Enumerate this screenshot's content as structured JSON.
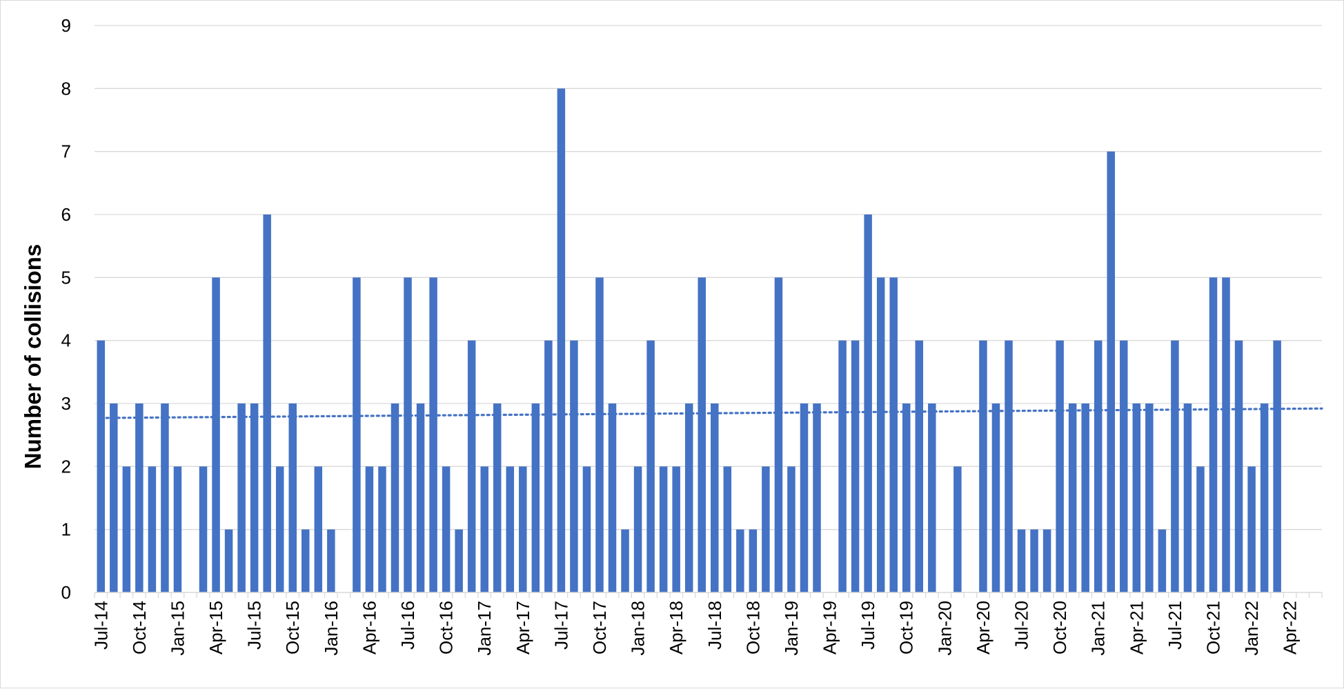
{
  "chart_data": {
    "type": "bar",
    "title": "",
    "xlabel": "",
    "ylabel": "Number of collisions",
    "ylim": [
      0,
      9
    ],
    "yticks": [
      0,
      1,
      2,
      3,
      4,
      5,
      6,
      7,
      8,
      9
    ],
    "grid": true,
    "legend": "none",
    "bar_color": "#4472C4",
    "trendline": {
      "type": "linear",
      "style": "dotted",
      "color": "#4472C4",
      "start_value": 2.77,
      "end_value": 2.92
    },
    "categories": [
      "Jul-14",
      "Aug-14",
      "Sep-14",
      "Oct-14",
      "Nov-14",
      "Dec-14",
      "Jan-15",
      "Feb-15",
      "Mar-15",
      "Apr-15",
      "May-15",
      "Jun-15",
      "Jul-15",
      "Aug-15",
      "Sep-15",
      "Oct-15",
      "Nov-15",
      "Dec-15",
      "Jan-16",
      "Feb-16",
      "Mar-16",
      "Apr-16",
      "May-16",
      "Jun-16",
      "Jul-16",
      "Aug-16",
      "Sep-16",
      "Oct-16",
      "Nov-16",
      "Dec-16",
      "Jan-17",
      "Feb-17",
      "Mar-17",
      "Apr-17",
      "May-17",
      "Jun-17",
      "Jul-17",
      "Aug-17",
      "Sep-17",
      "Oct-17",
      "Nov-17",
      "Dec-17",
      "Jan-18",
      "Feb-18",
      "Mar-18",
      "Apr-18",
      "May-18",
      "Jun-18",
      "Jul-18",
      "Aug-18",
      "Sep-18",
      "Oct-18",
      "Nov-18",
      "Dec-18",
      "Jan-19",
      "Feb-19",
      "Mar-19",
      "Apr-19",
      "May-19",
      "Jun-19",
      "Jul-19",
      "Aug-19",
      "Sep-19",
      "Oct-19",
      "Nov-19",
      "Dec-19",
      "Jan-20",
      "Feb-20",
      "Mar-20",
      "Apr-20",
      "May-20",
      "Jun-20",
      "Jul-20",
      "Aug-20",
      "Sep-20",
      "Oct-20",
      "Nov-20",
      "Dec-20",
      "Jan-21",
      "Feb-21",
      "Mar-21",
      "Apr-21",
      "May-21",
      "Jun-21",
      "Jul-21",
      "Aug-21",
      "Sep-21",
      "Oct-21",
      "Nov-21",
      "Dec-21",
      "Jan-22",
      "Feb-22",
      "Mar-22",
      "Apr-22",
      "May-22",
      "Jun-22"
    ],
    "values": [
      4,
      3,
      2,
      3,
      2,
      3,
      2,
      0,
      2,
      5,
      1,
      3,
      3,
      6,
      2,
      3,
      1,
      2,
      1,
      0,
      5,
      2,
      2,
      3,
      5,
      3,
      5,
      2,
      1,
      4,
      2,
      3,
      2,
      2,
      3,
      4,
      8,
      4,
      2,
      5,
      3,
      1,
      2,
      4,
      2,
      2,
      3,
      5,
      3,
      2,
      1,
      1,
      2,
      5,
      2,
      3,
      3,
      0,
      4,
      4,
      6,
      5,
      5,
      3,
      4,
      3,
      0,
      2,
      0,
      4,
      3,
      4,
      1,
      1,
      1,
      4,
      3,
      3,
      4,
      7,
      4,
      3,
      3,
      1,
      4,
      3,
      2,
      5,
      5,
      4,
      2,
      3,
      4,
      0,
      0,
      0
    ],
    "xtick_labels": [
      "Jul-14",
      "Oct-14",
      "Jan-15",
      "Apr-15",
      "Jul-15",
      "Oct-15",
      "Jan-16",
      "Apr-16",
      "Jul-16",
      "Oct-16",
      "Jan-17",
      "Apr-17",
      "Jul-17",
      "Oct-17",
      "Jan-18",
      "Apr-18",
      "Jul-18",
      "Oct-18",
      "Jan-19",
      "Apr-19",
      "Jul-19",
      "Oct-19",
      "Jan-20",
      "Apr-20",
      "Jul-20",
      "Oct-20",
      "Jan-21",
      "Apr-21",
      "Jul-21",
      "Oct-21",
      "Jan-22",
      "Apr-22"
    ],
    "xtick_every": 3
  }
}
